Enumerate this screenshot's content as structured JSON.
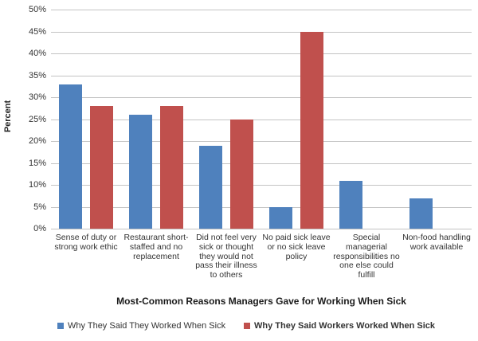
{
  "chart_data": {
    "type": "bar",
    "title": "",
    "xlabel": "Most-Common Reasons Managers Gave for Working When Sick",
    "ylabel": "Percent",
    "ylim": [
      0,
      50
    ],
    "ytick_step": 5,
    "ytick_labels": [
      "0%",
      "5%",
      "10%",
      "15%",
      "20%",
      "25%",
      "30%",
      "35%",
      "40%",
      "45%",
      "50%"
    ],
    "grid": true,
    "legend_position": "bottom",
    "categories": [
      "Sense of duty or strong work ethic",
      "Restaurant short-staffed and no replacement",
      "Did not feel very sick or thought they would not pass their illness to others",
      "No paid sick leave or no sick leave policy",
      "Special managerial responsibilities no one else could fulfill",
      "Non-food handling work available"
    ],
    "series": [
      {
        "name": "Why They Said They Worked When Sick",
        "color": "#4F81BD",
        "values": [
          33,
          26,
          19,
          5,
          11,
          7
        ]
      },
      {
        "name": "Why They Said Workers Worked When Sick",
        "color": "#C0504D",
        "values": [
          28,
          28,
          25,
          45,
          0,
          0
        ]
      }
    ],
    "colors": {
      "series1": "#4F81BD",
      "series2": "#C0504D",
      "gridline": "#C3C3C3"
    }
  }
}
